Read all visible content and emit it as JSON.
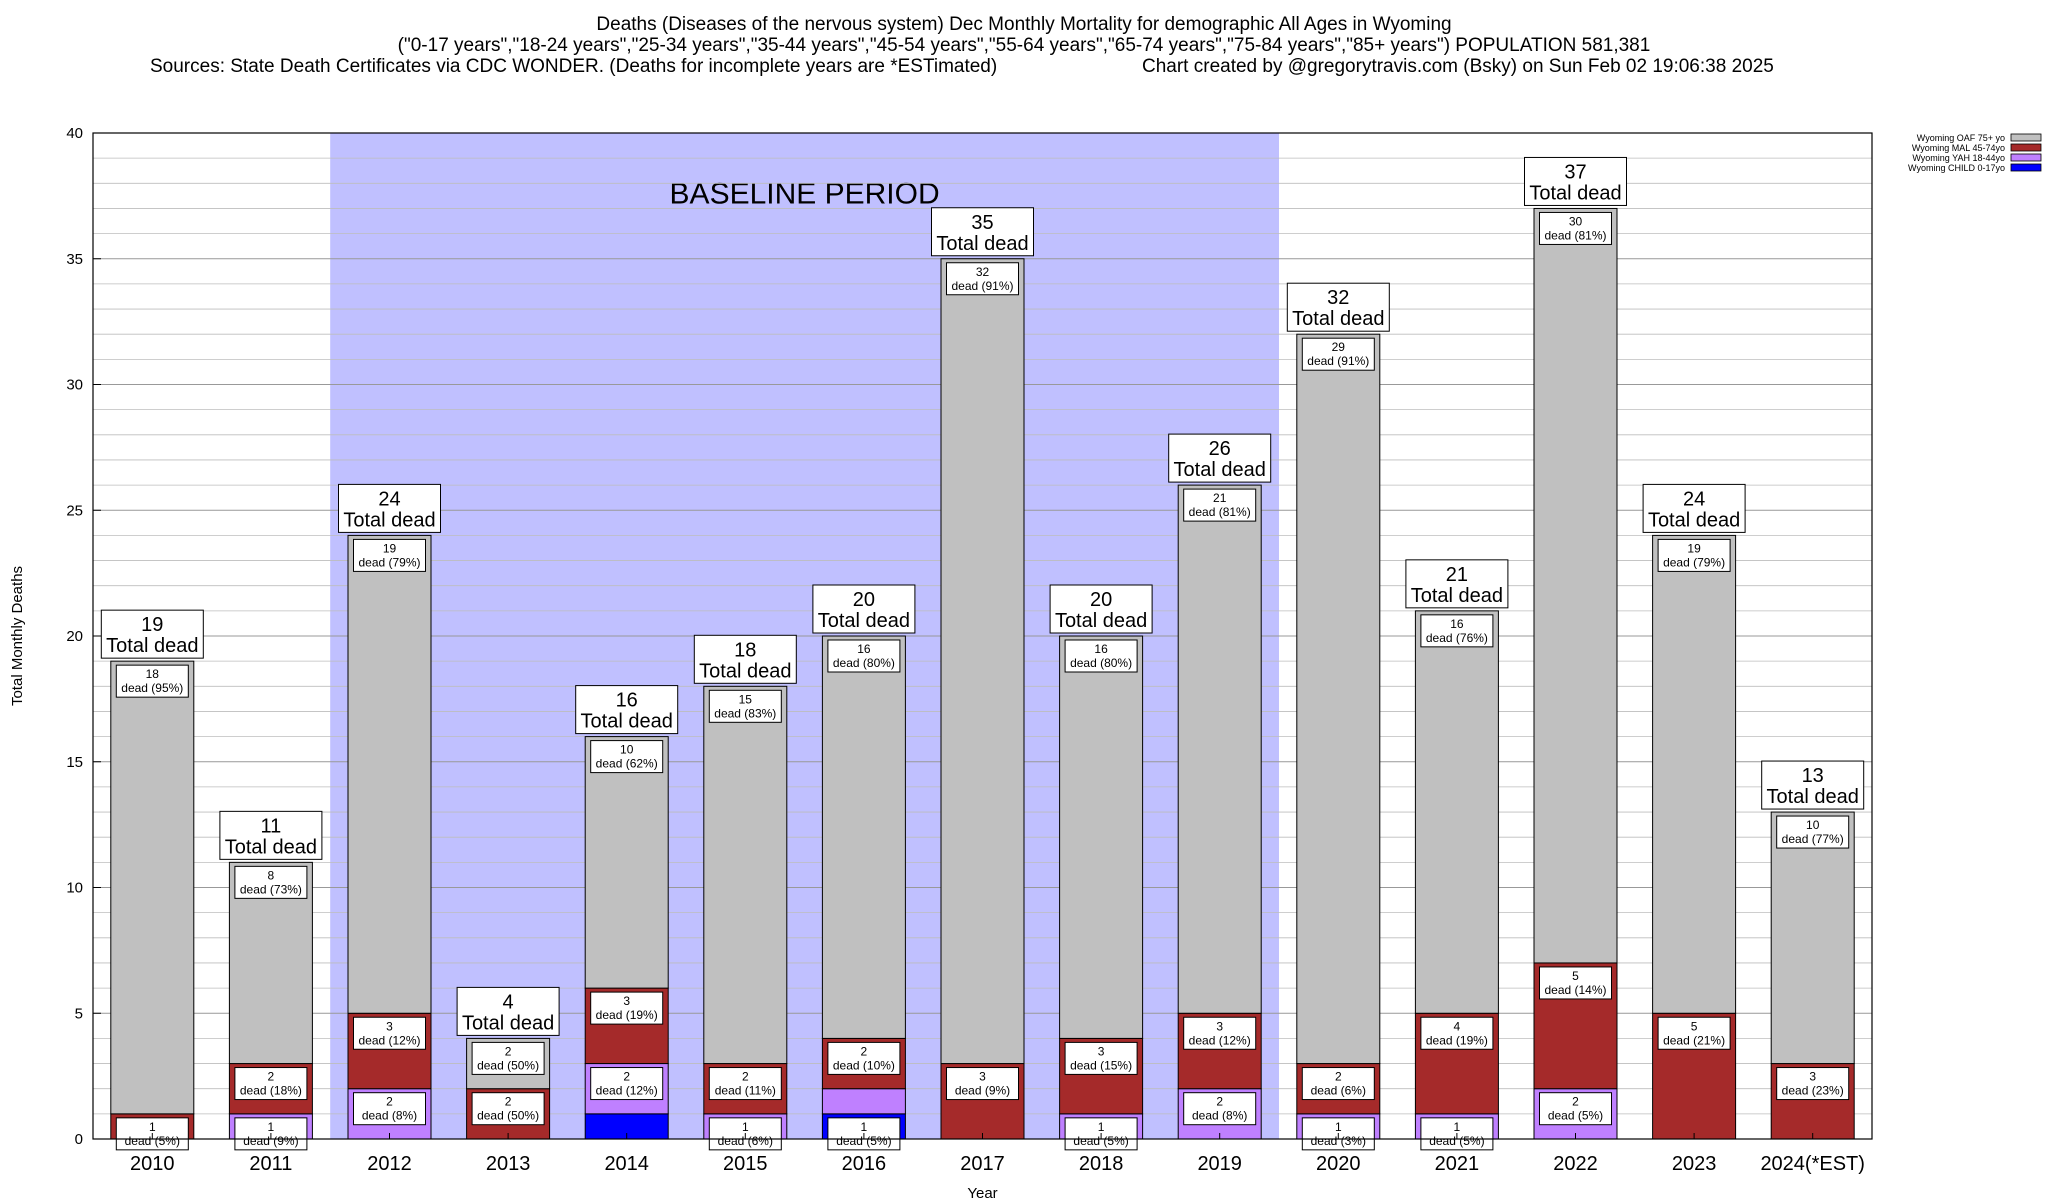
{
  "header": {
    "title_line1": "Deaths (Diseases of the nervous system) Dec Monthly Mortality for demographic All Ages in Wyoming",
    "title_line2": "(\"0-17 years\",\"18-24 years\",\"25-34 years\",\"35-44 years\",\"45-54 years\",\"55-64 years\",\"65-74 years\",\"75-84 years\",\"85+ years\") POPULATION 581,381",
    "sources": "Sources: State Death Certificates via CDC WONDER. (Deaths for incomplete years are *ESTimated)",
    "credit": "Chart created by @gregorytravis.com (Bsky) on Sun Feb 02 19:06:38 2025"
  },
  "chart_data": {
    "type": "bar",
    "stacked": true,
    "xlabel": "Year",
    "ylabel": "Total Monthly Deaths",
    "ylim": [
      0,
      40
    ],
    "yticks": [
      0,
      5,
      10,
      15,
      20,
      25,
      30,
      35,
      40
    ],
    "grid": true,
    "legend_position": "top-right",
    "baseline_label": "BASELINE PERIOD",
    "baseline_range": [
      "2012",
      "2019"
    ],
    "total_suffix": "Total dead",
    "categories": [
      "2010",
      "2011",
      "2012",
      "2013",
      "2014",
      "2015",
      "2016",
      "2017",
      "2018",
      "2019",
      "2020",
      "2021",
      "2022",
      "2023",
      "2024(*EST)"
    ],
    "totals": [
      19,
      11,
      24,
      4,
      16,
      18,
      20,
      35,
      20,
      26,
      32,
      21,
      37,
      24,
      13
    ],
    "series": [
      {
        "name": "Wyoming CHILD 0-17yo",
        "color": "#0000ff",
        "values": [
          0,
          0,
          0,
          0,
          1,
          0,
          1,
          0,
          0,
          0,
          0,
          0,
          0,
          0,
          0
        ],
        "labels": [
          null,
          null,
          null,
          null,
          null,
          null,
          "1|dead (5%)",
          null,
          null,
          null,
          null,
          null,
          null,
          null,
          null
        ]
      },
      {
        "name": "Wyoming YAH 18-44yo",
        "color": "#bf80ff",
        "values": [
          0,
          1,
          2,
          0,
          2,
          1,
          1,
          0,
          1,
          2,
          1,
          1,
          2,
          0,
          0
        ],
        "labels": [
          null,
          "1|dead (9%)",
          "2|dead (8%)",
          null,
          "2|dead (12%)",
          "1|dead (6%)",
          null,
          null,
          "1|dead (5%)",
          "2|dead (8%)",
          "1|dead (3%)",
          "1|dead (5%)",
          "2|dead (5%)",
          null,
          null
        ]
      },
      {
        "name": "Wyoming MAL 45-74yo",
        "color": "#a52a2a",
        "values": [
          1,
          2,
          3,
          2,
          3,
          2,
          2,
          3,
          3,
          3,
          2,
          4,
          5,
          5,
          3
        ],
        "labels": [
          "1|dead (5%)",
          "2|dead (18%)",
          "3|dead (12%)",
          "2|dead (50%)",
          "3|dead (19%)",
          "2|dead (11%)",
          "2|dead (10%)",
          "3|dead (9%)",
          "3|dead (15%)",
          "3|dead (12%)",
          "2|dead (6%)",
          "4|dead (19%)",
          "5|dead (14%)",
          "5|dead (21%)",
          "3|dead (23%)"
        ]
      },
      {
        "name": "Wyoming OAF 75+ yo",
        "color": "#c0c0c0",
        "values": [
          18,
          8,
          19,
          2,
          10,
          15,
          16,
          32,
          16,
          21,
          29,
          16,
          30,
          19,
          10
        ],
        "labels": [
          "18|dead (95%)",
          "8|dead (73%)",
          "19|dead (79%)",
          "2|dead (50%)",
          "10|dead (62%)",
          "15|dead (83%)",
          "16|dead (80%)",
          "32|dead (91%)",
          "16|dead (80%)",
          "21|dead (81%)",
          "29|dead (91%)",
          "16|dead (76%)",
          "30|dead (81%)",
          "19|dead (79%)",
          "10|dead (77%)"
        ]
      }
    ]
  },
  "colors": {
    "baseline_shade": "#c0c0ff",
    "grid": "#b0b0b0"
  }
}
